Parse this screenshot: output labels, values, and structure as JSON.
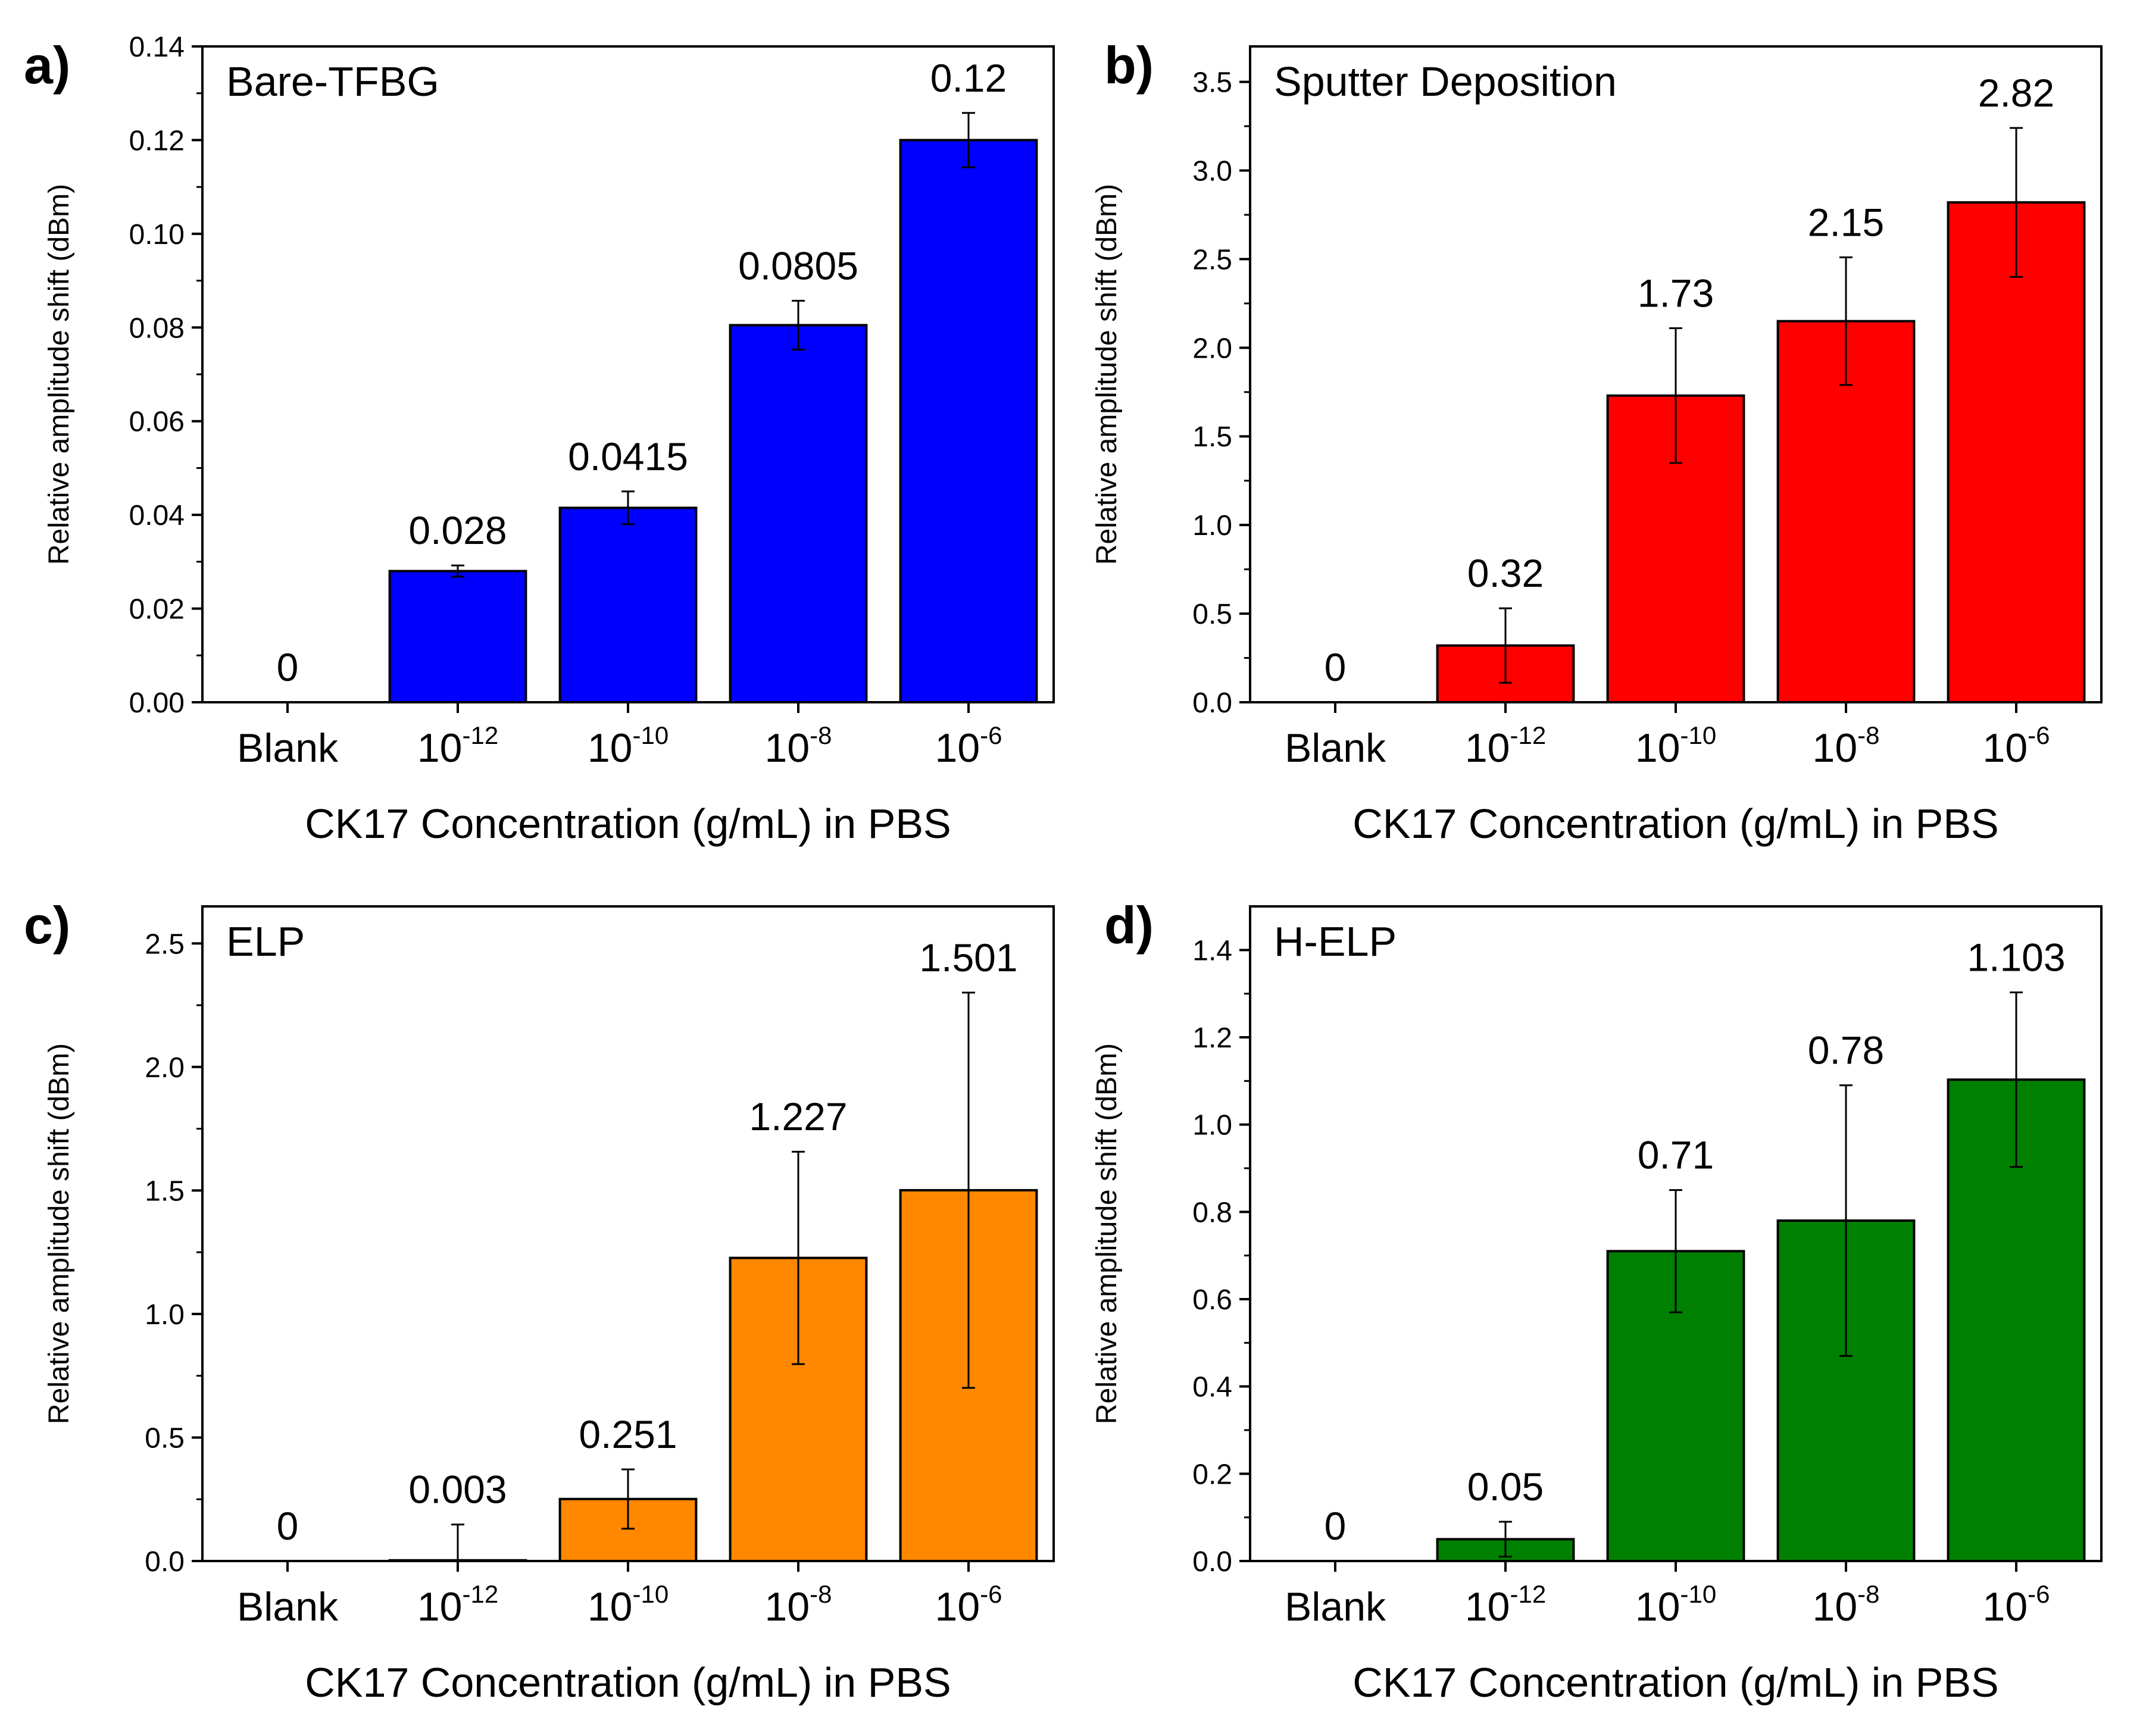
{
  "figure": {
    "charts": [
      "a",
      "b",
      "c",
      "d"
    ]
  },
  "chart_data": [
    {
      "type": "bar",
      "panel_label": "a)",
      "title": "Bare-TFBG",
      "categories": [
        {
          "base": "Blank",
          "exp": ""
        },
        {
          "base": "10",
          "exp": "-12"
        },
        {
          "base": "10",
          "exp": "-10"
        },
        {
          "base": "10",
          "exp": "-8"
        },
        {
          "base": "10",
          "exp": "-6"
        }
      ],
      "values": [
        0,
        0.028,
        0.0415,
        0.0805,
        0.12
      ],
      "errors": [
        0,
        0.0012,
        0.0035,
        0.0052,
        0.0058
      ],
      "value_labels": [
        "0",
        "0.028",
        "0.0415",
        "0.0805",
        "0.12"
      ],
      "ylim": [
        0,
        0.14
      ],
      "yticks": [
        0,
        0.02,
        0.04,
        0.06,
        0.08,
        0.1,
        0.12,
        0.14
      ],
      "ytick_labels": [
        "0.00",
        "0.02",
        "0.04",
        "0.06",
        "0.08",
        "0.10",
        "0.12",
        "0.14"
      ],
      "xlabel": "CK17 Concentration (g/mL) in PBS",
      "ylabel": "Relative amplitude shift (dBm)",
      "color": "#0000ff"
    },
    {
      "type": "bar",
      "panel_label": "b)",
      "title": "Sputter Deposition",
      "categories": [
        {
          "base": "Blank",
          "exp": ""
        },
        {
          "base": "10",
          "exp": "-12"
        },
        {
          "base": "10",
          "exp": "-10"
        },
        {
          "base": "10",
          "exp": "-8"
        },
        {
          "base": "10",
          "exp": "-6"
        }
      ],
      "values": [
        0,
        0.32,
        1.73,
        2.15,
        2.82
      ],
      "errors": [
        0,
        0.21,
        0.38,
        0.36,
        0.42
      ],
      "value_labels": [
        "0",
        "0.32",
        "1.73",
        "2.15",
        "2.82"
      ],
      "ylim": [
        0,
        3.7
      ],
      "yticks": [
        0,
        0.5,
        1.0,
        1.5,
        2.0,
        2.5,
        3.0,
        3.5
      ],
      "ytick_labels": [
        "0.0",
        "0.5",
        "1.0",
        "1.5",
        "2.0",
        "2.5",
        "3.0",
        "3.5"
      ],
      "xlabel": "CK17 Concentration (g/mL) in PBS",
      "ylabel": "Relative amplitude shift (dBm)",
      "color": "#ff0000"
    },
    {
      "type": "bar",
      "panel_label": "c)",
      "title": "ELP",
      "categories": [
        {
          "base": "Blank",
          "exp": ""
        },
        {
          "base": "10",
          "exp": "-12"
        },
        {
          "base": "10",
          "exp": "-10"
        },
        {
          "base": "10",
          "exp": "-8"
        },
        {
          "base": "10",
          "exp": "-6"
        }
      ],
      "values": [
        0,
        0.003,
        0.251,
        1.227,
        1.501
      ],
      "errors": [
        0,
        0.145,
        0.12,
        0.43,
        0.8
      ],
      "value_labels": [
        "0",
        "0.003",
        "0.251",
        "1.227",
        "1.501"
      ],
      "ylim": [
        0,
        2.65
      ],
      "yticks": [
        0,
        0.5,
        1.0,
        1.5,
        2.0,
        2.5
      ],
      "ytick_labels": [
        "0.0",
        "0.5",
        "1.0",
        "1.5",
        "2.0",
        "2.5"
      ],
      "xlabel": "CK17 Concentration (g/mL) in PBS",
      "ylabel": "Relative amplitude shift (dBm)",
      "color": "#ff8800"
    },
    {
      "type": "bar",
      "panel_label": "d)",
      "title": "H-ELP",
      "categories": [
        {
          "base": "Blank",
          "exp": ""
        },
        {
          "base": "10",
          "exp": "-12"
        },
        {
          "base": "10",
          "exp": "-10"
        },
        {
          "base": "10",
          "exp": "-8"
        },
        {
          "base": "10",
          "exp": "-6"
        }
      ],
      "values": [
        0,
        0.05,
        0.71,
        0.78,
        1.103
      ],
      "errors": [
        0,
        0.04,
        0.14,
        0.31,
        0.2
      ],
      "value_labels": [
        "0",
        "0.05",
        "0.71",
        "0.78",
        "1.103"
      ],
      "ylim": [
        0,
        1.5
      ],
      "yticks": [
        0,
        0.2,
        0.4,
        0.6,
        0.8,
        1.0,
        1.2,
        1.4
      ],
      "ytick_labels": [
        "0.0",
        "0.2",
        "0.4",
        "0.6",
        "0.8",
        "1.0",
        "1.2",
        "1.4"
      ],
      "xlabel": "CK17 Concentration (g/mL) in PBS",
      "ylabel": "Relative amplitude shift (dBm)",
      "color": "#008000"
    }
  ]
}
